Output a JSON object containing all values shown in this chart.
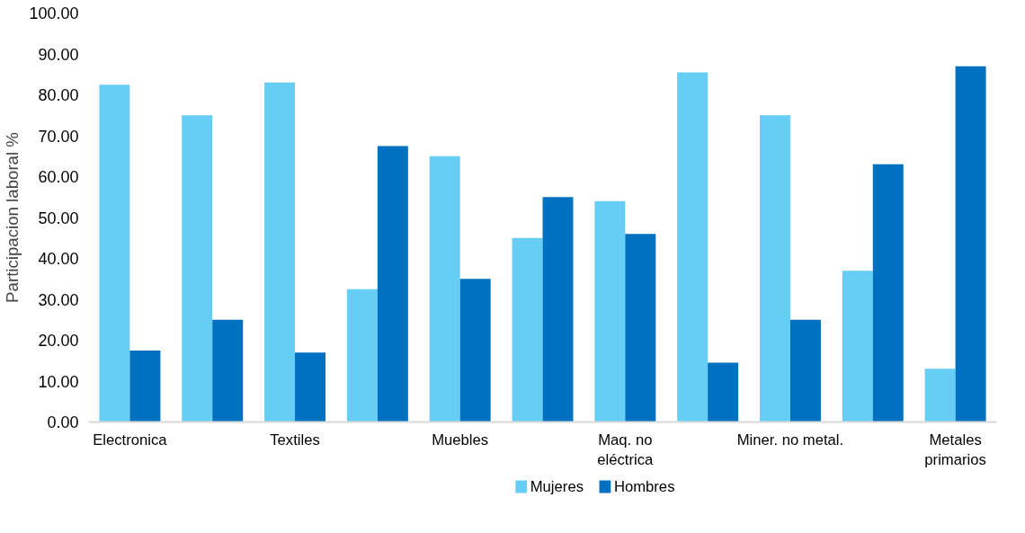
{
  "chart_data": {
    "type": "bar",
    "ylabel": "Participacion laboral %",
    "categories": [
      "Electronica",
      null,
      "Textiles",
      null,
      "Muebles",
      null,
      "Maq. no\neléctrica",
      null,
      "Miner. no metal.",
      null,
      "Metales\nprimarios"
    ],
    "series": [
      {
        "name": "Mujeres",
        "color": "#66cef5",
        "values": [
          82.5,
          75,
          83,
          32.5,
          65,
          45,
          54,
          85.5,
          75,
          37,
          13
        ]
      },
      {
        "name": "Hombres",
        "color": "#0070c0",
        "values": [
          17.5,
          25,
          17,
          67.5,
          35,
          55,
          46,
          14.5,
          25,
          63,
          87
        ]
      }
    ],
    "ylim": [
      0,
      100
    ],
    "yticks": [
      {
        "value": 0,
        "label": "0.00"
      },
      {
        "value": 10,
        "label": "10.00"
      },
      {
        "value": 20,
        "label": "20.00"
      },
      {
        "value": 30,
        "label": "30.00"
      },
      {
        "value": 40,
        "label": "40.00"
      },
      {
        "value": 50,
        "label": "50.00"
      },
      {
        "value": 60,
        "label": "60.00"
      },
      {
        "value": 70,
        "label": "70.00"
      },
      {
        "value": 80,
        "label": "80.00"
      },
      {
        "value": 90,
        "label": "90.00"
      },
      {
        "value": 100,
        "label": "100.00"
      }
    ],
    "grid": false,
    "legend": "bottom"
  }
}
